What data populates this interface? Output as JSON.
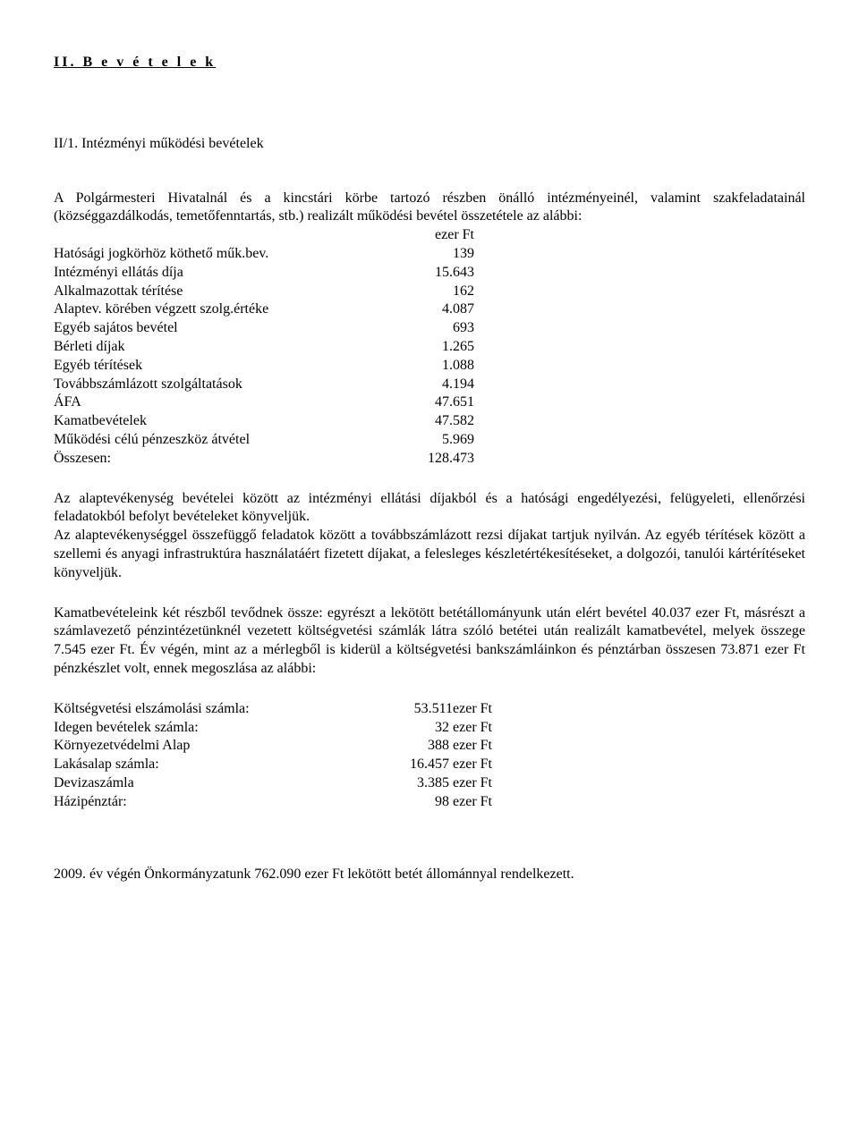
{
  "section_title": "II. B e v é t e l e k",
  "subsection_title": "II/1. Intézményi működési bevételek",
  "intro": "A Polgármesteri Hivatalnál és a kincstári körbe tartozó részben önálló intézményeinél, valamint szakfeladatainál (községgazdálkodás, temetőfenntartás, stb.) realizált működési bevétel összetétele az alábbi:",
  "table1": {
    "col_header": "ezer Ft",
    "rows": [
      {
        "label": "Hatósági jogkörhöz köthető műk.bev.",
        "value": "139"
      },
      {
        "label": "Intézményi ellátás díja",
        "value": "15.643"
      },
      {
        "label": "Alkalmazottak térítése",
        "value": "162"
      },
      {
        "label": "Alaptev. körében végzett szolg.értéke",
        "value": "4.087"
      },
      {
        "label": "Egyéb sajátos bevétel",
        "value": "693"
      },
      {
        "label": "Bérleti díjak",
        "value": "1.265"
      },
      {
        "label": "Egyéb térítések",
        "value": "1.088"
      },
      {
        "label": "Továbbszámlázott szolgáltatások",
        "value": "4.194"
      },
      {
        "label": "ÁFA",
        "value": "47.651"
      },
      {
        "label": "Kamatbevételek",
        "value": "47.582"
      },
      {
        "label": "Működési célú pénzeszköz átvétel",
        "value": "5.969"
      },
      {
        "label": "Összesen:",
        "value": "128.473"
      }
    ]
  },
  "para1": "Az alaptevékenység bevételei között az intézményi ellátási díjakból és a hatósági engedélyezési, felügyeleti, ellenőrzési feladatokból befolyt bevételeket könyveljük.",
  "para2": "Az alaptevékenységgel összefüggő feladatok között a továbbszámlázott rezsi díjakat tartjuk nyilván. Az egyéb térítések között a szellemi és anyagi infrastruktúra használatáért fizetett díjakat, a felesleges készletértékesítéseket, a dolgozói, tanulói kártérítéseket könyveljük.",
  "para3": "Kamatbevételeink két részből tevődnek össze: egyrészt a lekötött betétállományunk után elért bevétel 40.037 ezer Ft, másrészt a számlavezető pénzintézetünknél vezetett költségvetési számlák látra szóló betétei után realizált kamatbevétel, melyek összege 7.545 ezer Ft. Év végén, mint az a mérlegből is kiderül a költségvetési bankszámláinkon és pénztárban összesen 73.871 ezer Ft pénzkészlet volt, ennek megoszlása az alábbi:",
  "table2": {
    "rows": [
      {
        "label": "Költségvetési elszámolási számla:",
        "value": "53.511ezer Ft"
      },
      {
        "label": "Idegen bevételek számla:",
        "value": "32 ezer Ft"
      },
      {
        "label": "Környezetvédelmi Alap",
        "value": "388 ezer Ft"
      },
      {
        "label": "Lakásalap számla:",
        "value": "16.457 ezer Ft"
      },
      {
        "label": "Devizaszámla",
        "value": "3.385 ezer Ft"
      },
      {
        "label": "Házipénztár:",
        "value": "98 ezer Ft"
      }
    ]
  },
  "closing": "2009. év végén Önkormányzatunk 762.090 ezer Ft lekötött betét állománnyal rendelkezett."
}
